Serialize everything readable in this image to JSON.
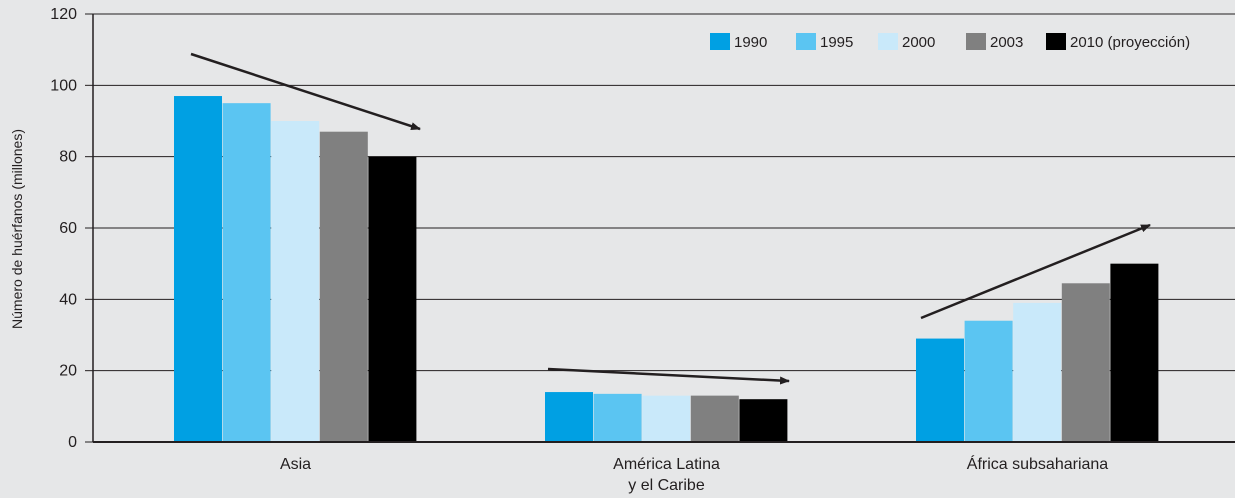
{
  "chart_data": {
    "type": "bar",
    "title": "",
    "ylabel": "Número de huérfanos (millones)",
    "xlabel": "",
    "ylim": [
      0,
      120
    ],
    "yticks": [
      0,
      20,
      40,
      60,
      80,
      100,
      120
    ],
    "grid": true,
    "legend_position": "top-right",
    "categories": [
      [
        "Asia"
      ],
      [
        "América Latina",
        "y el Caribe"
      ],
      [
        "África subsahariana"
      ]
    ],
    "series": [
      {
        "name": "1990",
        "color": "#00a0e3",
        "values": [
          97,
          14,
          29
        ]
      },
      {
        "name": "1995",
        "color": "#5bc5f2",
        "values": [
          95,
          13.5,
          34
        ]
      },
      {
        "name": "2000",
        "color": "#c9e9fa",
        "values": [
          90,
          13,
          39
        ]
      },
      {
        "name": "2003",
        "color": "#808080",
        "values": [
          87,
          13,
          44.5
        ]
      },
      {
        "name": "2010 (proyección)",
        "color": "#000000",
        "values": [
          80,
          12,
          50
        ]
      }
    ],
    "trend_arrows": [
      {
        "category": "Asia",
        "direction": "down"
      },
      {
        "category": "América Latina y el Caribe",
        "direction": "down"
      },
      {
        "category": "África subsahariana",
        "direction": "up"
      }
    ]
  }
}
